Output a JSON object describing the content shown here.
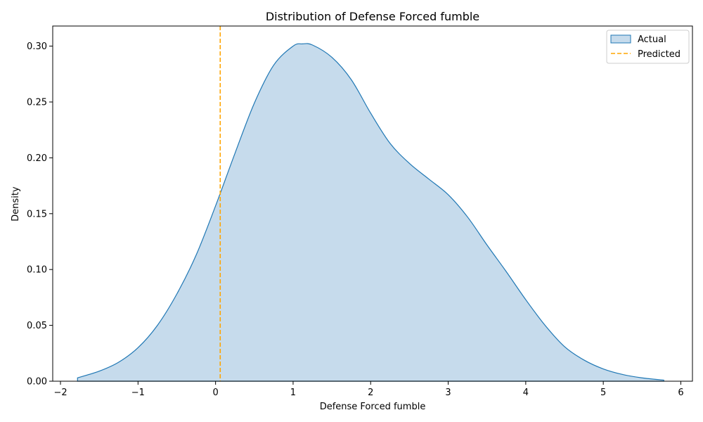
{
  "chart_data": {
    "type": "area",
    "title": "Distribution of Defense Forced fumble",
    "xlabel": "Defense Forced fumble",
    "ylabel": "Density",
    "xlim": [
      -2.1,
      6.15
    ],
    "ylim": [
      0,
      0.318
    ],
    "xticks": [
      -2,
      -1,
      0,
      1,
      2,
      3,
      4,
      5,
      6
    ],
    "xtick_labels": [
      "−2",
      "−1",
      "0",
      "1",
      "2",
      "3",
      "4",
      "5",
      "6"
    ],
    "yticks": [
      0.0,
      0.05,
      0.1,
      0.15,
      0.2,
      0.25,
      0.3
    ],
    "ytick_labels": [
      "0.00",
      "0.05",
      "0.10",
      "0.15",
      "0.20",
      "0.25",
      "0.30"
    ],
    "grid": false,
    "legend_position": "top-right",
    "series": [
      {
        "name": "Actual",
        "kind": "kde-fill",
        "color": "#1f77b4",
        "fill_color": "#c6dbec",
        "x": [
          -1.78,
          -1.5,
          -1.25,
          -1.0,
          -0.75,
          -0.5,
          -0.25,
          0.0,
          0.25,
          0.5,
          0.75,
          1.0,
          1.12,
          1.25,
          1.5,
          1.75,
          2.0,
          2.25,
          2.5,
          2.75,
          3.0,
          3.25,
          3.5,
          3.75,
          4.0,
          4.25,
          4.5,
          4.75,
          5.0,
          5.25,
          5.5,
          5.78
        ],
        "y": [
          0.003,
          0.009,
          0.017,
          0.03,
          0.05,
          0.078,
          0.113,
          0.157,
          0.204,
          0.249,
          0.283,
          0.3,
          0.302,
          0.301,
          0.29,
          0.27,
          0.24,
          0.213,
          0.195,
          0.181,
          0.167,
          0.147,
          0.122,
          0.098,
          0.073,
          0.05,
          0.031,
          0.019,
          0.011,
          0.006,
          0.003,
          0.001
        ]
      },
      {
        "name": "Predicted",
        "kind": "vline",
        "color": "#ffa500",
        "x_value": 0.06
      }
    ]
  }
}
